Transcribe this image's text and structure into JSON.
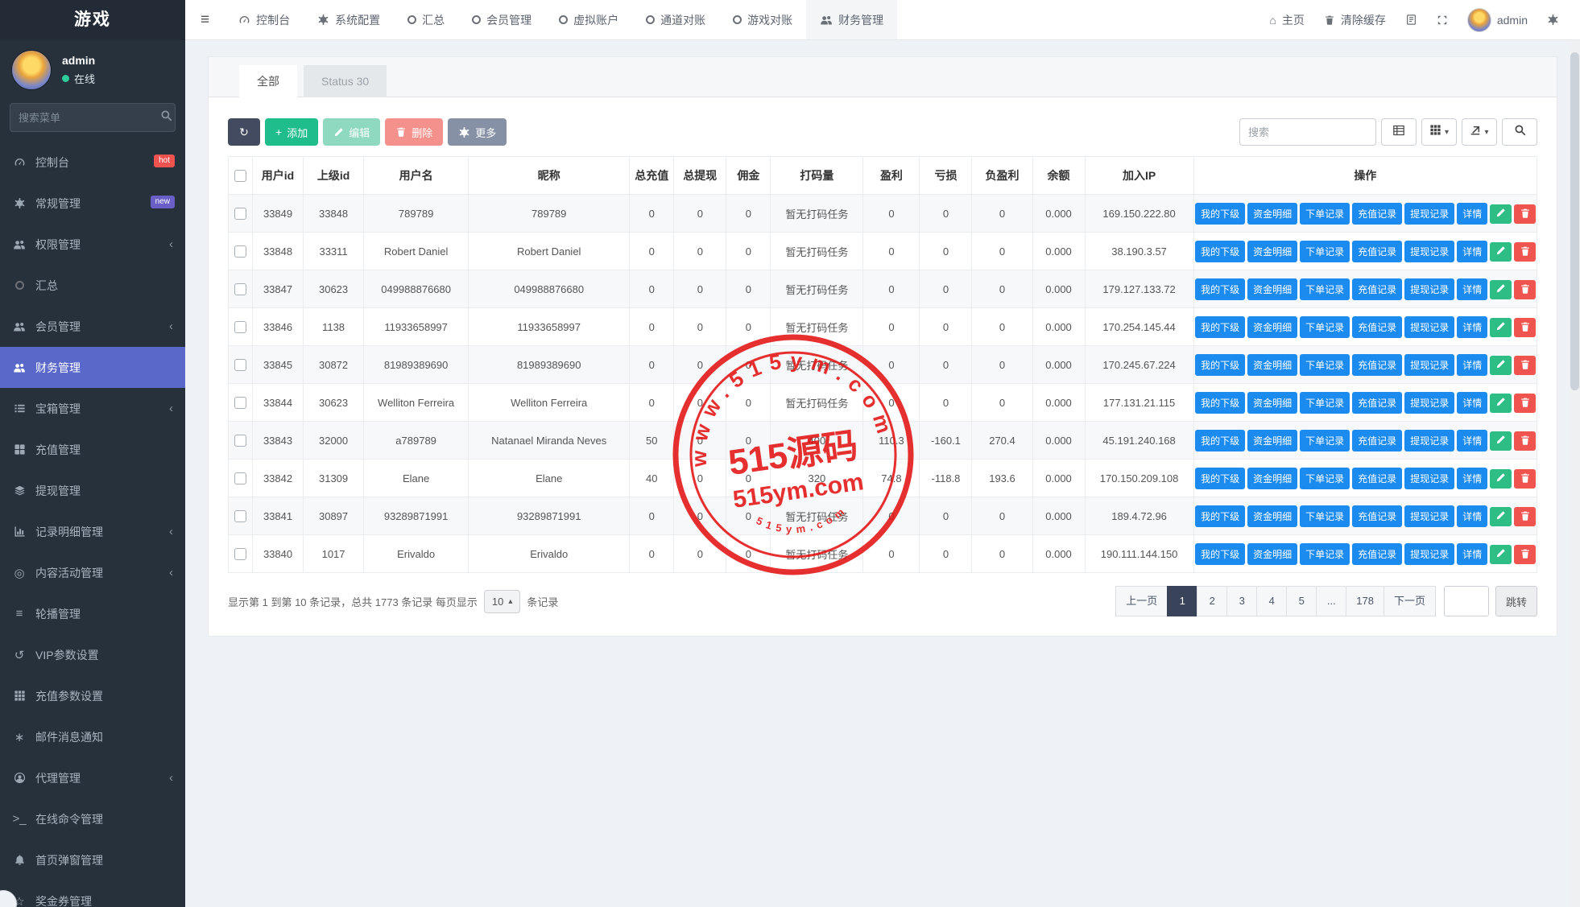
{
  "sidebar": {
    "brand": "游戏",
    "user": {
      "name": "admin",
      "status": "在线"
    },
    "search_placeholder": "搜索菜单",
    "items": [
      {
        "label": "控制台",
        "icon": "gauge",
        "badge": "hot",
        "badge_color": "#ef5350"
      },
      {
        "label": "常规管理",
        "icon": "gear",
        "badge": "new",
        "badge_color": "#6a5fc7"
      },
      {
        "label": "权限管理",
        "icon": "users",
        "chevron": true
      },
      {
        "label": "汇总",
        "icon": "circle"
      },
      {
        "label": "会员管理",
        "icon": "users",
        "chevron": true
      },
      {
        "label": "财务管理",
        "icon": "users",
        "active": true
      },
      {
        "label": "宝箱管理",
        "icon": "list",
        "chevron": true
      },
      {
        "label": "充值管理",
        "icon": "th"
      },
      {
        "label": "提现管理",
        "icon": "stack"
      },
      {
        "label": "记录明细管理",
        "icon": "chart",
        "chevron": true
      },
      {
        "label": "内容活动管理",
        "icon": "disc",
        "chevron": true
      },
      {
        "label": "轮播管理",
        "icon": "bars"
      },
      {
        "label": "VIP参数设置",
        "icon": "history"
      },
      {
        "label": "充值参数设置",
        "icon": "grid9"
      },
      {
        "label": "邮件消息通知",
        "icon": "asterisk"
      },
      {
        "label": "代理管理",
        "icon": "user-circle",
        "chevron": true
      },
      {
        "label": "在线命令管理",
        "icon": "terminal"
      },
      {
        "label": "首页弹窗管理",
        "icon": "bell"
      },
      {
        "label": "奖金券管理",
        "icon": "star"
      }
    ]
  },
  "topnav": {
    "items": [
      {
        "label": "控制台",
        "icon": "gauge"
      },
      {
        "label": "系统配置",
        "icon": "gear"
      },
      {
        "label": "汇总",
        "icon": "circle"
      },
      {
        "label": "会员管理",
        "icon": "circle"
      },
      {
        "label": "虚拟账户",
        "icon": "circle"
      },
      {
        "label": "通道对账",
        "icon": "circle"
      },
      {
        "label": "游戏对账",
        "icon": "circle"
      },
      {
        "label": "财务管理",
        "icon": "users",
        "active": true
      }
    ],
    "right": {
      "home": "主页",
      "clear_cache": "清除缓存",
      "username": "admin"
    }
  },
  "tabs": [
    {
      "label": "全部",
      "active": true
    },
    {
      "label": "Status 30",
      "active": false
    }
  ],
  "toolbar": {
    "add": "添加",
    "edit": "编辑",
    "delete": "删除",
    "more": "更多",
    "search_placeholder": "搜索"
  },
  "table": {
    "columns": [
      "用户id",
      "上级id",
      "用户名",
      "昵称",
      "总充值",
      "总提现",
      "佣金",
      "打码量",
      "盈利",
      "亏损",
      "负盈利",
      "余额",
      "加入IP",
      "操作"
    ],
    "row_actions": [
      "我的下级",
      "资金明细",
      "下单记录",
      "充值记录",
      "提现记录",
      "详情"
    ],
    "rows": [
      {
        "user_id": "33849",
        "parent_id": "33848",
        "username": "789789",
        "nickname": "789789",
        "total_recharge": "0",
        "total_withdraw": "0",
        "commission": "0",
        "bet_amount": "暂无打码任务",
        "profit": "0",
        "loss": "0",
        "neg_profit": "0",
        "balance": "0.000",
        "join_ip": "169.150.222.80"
      },
      {
        "user_id": "33848",
        "parent_id": "33311",
        "username": "Robert Daniel",
        "nickname": "Robert Daniel",
        "total_recharge": "0",
        "total_withdraw": "0",
        "commission": "0",
        "bet_amount": "暂无打码任务",
        "profit": "0",
        "loss": "0",
        "neg_profit": "0",
        "balance": "0.000",
        "join_ip": "38.190.3.57"
      },
      {
        "user_id": "33847",
        "parent_id": "30623",
        "username": "049988876680",
        "nickname": "049988876680",
        "total_recharge": "0",
        "total_withdraw": "0",
        "commission": "0",
        "bet_amount": "暂无打码任务",
        "profit": "0",
        "loss": "0",
        "neg_profit": "0",
        "balance": "0.000",
        "join_ip": "179.127.133.72"
      },
      {
        "user_id": "33846",
        "parent_id": "1138",
        "username": "11933658997",
        "nickname": "11933658997",
        "total_recharge": "0",
        "total_withdraw": "0",
        "commission": "0",
        "bet_amount": "暂无打码任务",
        "profit": "0",
        "loss": "0",
        "neg_profit": "0",
        "balance": "0.000",
        "join_ip": "170.254.145.44"
      },
      {
        "user_id": "33845",
        "parent_id": "30872",
        "username": "81989389690",
        "nickname": "81989389690",
        "total_recharge": "0",
        "total_withdraw": "0",
        "commission": "0",
        "bet_amount": "暂无打码任务",
        "profit": "0",
        "loss": "0",
        "neg_profit": "0",
        "balance": "0.000",
        "join_ip": "170.245.67.224"
      },
      {
        "user_id": "33844",
        "parent_id": "30623",
        "username": "Welliton Ferreira",
        "nickname": "Welliton Ferreira",
        "total_recharge": "0",
        "total_withdraw": "0",
        "commission": "0",
        "bet_amount": "暂无打码任务",
        "profit": "0",
        "loss": "0",
        "neg_profit": "0",
        "balance": "0.000",
        "join_ip": "177.131.21.115"
      },
      {
        "user_id": "33843",
        "parent_id": "32000",
        "username": "a789789",
        "nickname": "Natanael Miranda Neves",
        "total_recharge": "50",
        "total_withdraw": "0",
        "commission": "0",
        "bet_amount": "400",
        "profit": "110.3",
        "loss": "-160.1",
        "neg_profit": "270.4",
        "balance": "0.000",
        "join_ip": "45.191.240.168"
      },
      {
        "user_id": "33842",
        "parent_id": "31309",
        "username": "Elane",
        "nickname": "Elane",
        "total_recharge": "40",
        "total_withdraw": "0",
        "commission": "0",
        "bet_amount": "320",
        "profit": "74.8",
        "loss": "-118.8",
        "neg_profit": "193.6",
        "balance": "0.000",
        "join_ip": "170.150.209.108"
      },
      {
        "user_id": "33841",
        "parent_id": "30897",
        "username": "93289871991",
        "nickname": "93289871991",
        "total_recharge": "0",
        "total_withdraw": "0",
        "commission": "0",
        "bet_amount": "暂无打码任务",
        "profit": "0",
        "loss": "0",
        "neg_profit": "0",
        "balance": "0.000",
        "join_ip": "189.4.72.96"
      },
      {
        "user_id": "33840",
        "parent_id": "1017",
        "username": "Erivaldo",
        "nickname": "Erivaldo",
        "total_recharge": "0",
        "total_withdraw": "0",
        "commission": "0",
        "bet_amount": "暂无打码任务",
        "profit": "0",
        "loss": "0",
        "neg_profit": "0",
        "balance": "0.000",
        "join_ip": "190.111.144.150"
      }
    ]
  },
  "footer": {
    "summary": "显示第 1 到第 10 条记录，总共 1773 条记录 每页显示",
    "per_page": "10",
    "summary_suffix": "条记录",
    "pages": [
      "上一页",
      "1",
      "2",
      "3",
      "4",
      "5",
      "...",
      "178",
      "下一页"
    ],
    "active_page": "1",
    "jump": "跳转"
  },
  "watermark": {
    "arc_text": "www.515ym.com",
    "title": "515源码",
    "domain": "515ym.com",
    "bottom_arc": "515ym.com",
    "color": "#e31212"
  },
  "colors": {
    "accent_blue": "#1b8bf0",
    "sidebar_active": "#5a68c9",
    "green": "#1fbc8c",
    "red": "#f0544f",
    "pagination_active": "#39435a",
    "stamp_red": "#e31212"
  }
}
